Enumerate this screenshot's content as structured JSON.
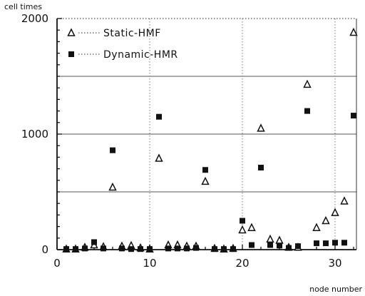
{
  "chart_data": {
    "type": "scatter",
    "title": "",
    "ylabel": "cell times",
    "xlabel": "node number",
    "xlim": [
      0,
      32
    ],
    "ylim": [
      0,
      2000
    ],
    "x_ticks": [
      "0",
      "10",
      "20",
      "30"
    ],
    "y_ticks": [
      "0",
      "1000",
      "2000"
    ],
    "grid": true,
    "legend_position": "top-left",
    "series": [
      {
        "name": "Static-HMF",
        "marker": "triangle-open",
        "x": [
          1,
          2,
          3,
          4,
          5,
          6,
          7,
          8,
          9,
          10,
          11,
          12,
          13,
          14,
          15,
          16,
          17,
          18,
          19,
          20,
          21,
          22,
          23,
          24,
          25,
          26,
          27,
          28,
          29,
          30,
          31,
          32
        ],
        "y": [
          5,
          5,
          20,
          40,
          25,
          540,
          30,
          35,
          15,
          5,
          790,
          40,
          40,
          30,
          30,
          590,
          10,
          5,
          10,
          170,
          190,
          1050,
          90,
          80,
          20,
          20,
          1430,
          190,
          250,
          320,
          420,
          1880
        ]
      },
      {
        "name": "Dynamic-HMR",
        "marker": "square-filled",
        "x": [
          1,
          2,
          3,
          4,
          5,
          6,
          7,
          8,
          9,
          10,
          11,
          12,
          13,
          14,
          15,
          16,
          17,
          18,
          19,
          20,
          21,
          22,
          23,
          24,
          25,
          26,
          27,
          28,
          29,
          30,
          31,
          32
        ],
        "y": [
          5,
          5,
          10,
          65,
          10,
          860,
          10,
          5,
          5,
          5,
          1150,
          10,
          10,
          10,
          15,
          690,
          5,
          5,
          5,
          250,
          40,
          710,
          40,
          35,
          15,
          30,
          1200,
          55,
          55,
          60,
          60,
          1160
        ]
      }
    ]
  }
}
